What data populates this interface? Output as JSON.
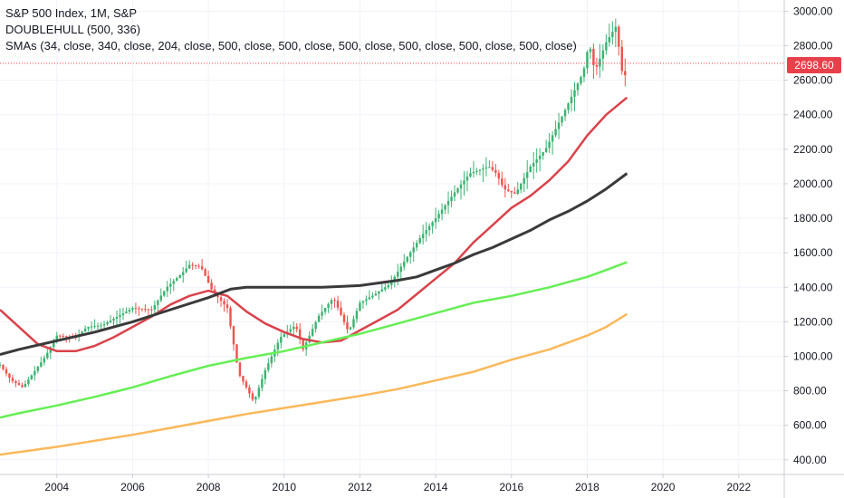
{
  "legend": {
    "title": "S&P 500 Index, 1M, S&P",
    "line2": "DOUBLEHULL (500, 336)",
    "line3": "SMAs (34, close, 340, close, 204, close, 500, close, 500, close, 500, close, 500, close, 500, close, 500, close)"
  },
  "last_price_label": "2698.60",
  "colors": {
    "up": "#3cb371",
    "down": "#ef5350",
    "last_price": "#e8404a",
    "sma_red": "#d9434b",
    "sma_black": "#3a3a3a",
    "sma_green": "#66ee55",
    "sma_orange": "#fbb85a",
    "grid": "#f0f3fa"
  },
  "chart_data": {
    "type": "line",
    "chart_style": "candlestick price with moving-average overlays",
    "x_axis": {
      "ticks": [
        "2004",
        "2006",
        "2008",
        "2010",
        "2012",
        "2014",
        "2016",
        "2018",
        "2020",
        "2022"
      ],
      "range": [
        2002.5,
        2023.2
      ]
    },
    "y_axis": {
      "ticks": [
        "400.00",
        "600.00",
        "800.00",
        "1000.00",
        "1200.00",
        "1400.00",
        "1600.00",
        "1800.00",
        "2000.00",
        "2200.00",
        "2400.00",
        "2600.00",
        "2800.00",
        "3000.00"
      ],
      "range": [
        315,
        3065
      ]
    },
    "last_price": 2698.6,
    "price_anchors": [
      [
        2002.5,
        950
      ],
      [
        2002.8,
        860
      ],
      [
        2003.1,
        820
      ],
      [
        2003.3,
        880
      ],
      [
        2003.7,
        1000
      ],
      [
        2004.0,
        1120
      ],
      [
        2004.5,
        1110
      ],
      [
        2004.8,
        1170
      ],
      [
        2005.2,
        1180
      ],
      [
        2005.6,
        1230
      ],
      [
        2006.0,
        1280
      ],
      [
        2006.5,
        1270
      ],
      [
        2006.9,
        1400
      ],
      [
        2007.3,
        1480
      ],
      [
        2007.5,
        1530
      ],
      [
        2007.8,
        1520
      ],
      [
        2008.1,
        1380
      ],
      [
        2008.5,
        1280
      ],
      [
        2008.8,
        900
      ],
      [
        2009.0,
        820
      ],
      [
        2009.2,
        735
      ],
      [
        2009.5,
        920
      ],
      [
        2009.9,
        1110
      ],
      [
        2010.3,
        1180
      ],
      [
        2010.5,
        1040
      ],
      [
        2010.9,
        1230
      ],
      [
        2011.3,
        1340
      ],
      [
        2011.7,
        1140
      ],
      [
        2012.0,
        1310
      ],
      [
        2012.4,
        1360
      ],
      [
        2012.8,
        1420
      ],
      [
        2013.2,
        1560
      ],
      [
        2013.6,
        1690
      ],
      [
        2014.0,
        1800
      ],
      [
        2014.5,
        1950
      ],
      [
        2014.9,
        2060
      ],
      [
        2015.4,
        2100
      ],
      [
        2015.6,
        2060
      ],
      [
        2015.8,
        1970
      ],
      [
        2016.1,
        1940
      ],
      [
        2016.5,
        2100
      ],
      [
        2016.9,
        2200
      ],
      [
        2017.4,
        2420
      ],
      [
        2017.9,
        2650
      ],
      [
        2018.05,
        2820
      ],
      [
        2018.2,
        2650
      ],
      [
        2018.5,
        2820
      ],
      [
        2018.75,
        2910
      ],
      [
        2018.9,
        2700
      ],
      [
        2018.95,
        2560
      ],
      [
        2019.05,
        2698.6
      ]
    ],
    "series": [
      {
        "color_key": "sma_red",
        "points": [
          [
            2002.5,
            1270
          ],
          [
            2003.0,
            1170
          ],
          [
            2003.5,
            1070
          ],
          [
            2004.0,
            1030
          ],
          [
            2004.5,
            1030
          ],
          [
            2005.0,
            1060
          ],
          [
            2005.5,
            1110
          ],
          [
            2006.0,
            1170
          ],
          [
            2006.5,
            1230
          ],
          [
            2007.0,
            1300
          ],
          [
            2007.5,
            1350
          ],
          [
            2008.0,
            1380
          ],
          [
            2008.5,
            1350
          ],
          [
            2009.0,
            1260
          ],
          [
            2009.5,
            1190
          ],
          [
            2010.0,
            1140
          ],
          [
            2010.5,
            1100
          ],
          [
            2011.0,
            1080
          ],
          [
            2011.5,
            1090
          ],
          [
            2012.0,
            1150
          ],
          [
            2012.5,
            1210
          ],
          [
            2013.0,
            1270
          ],
          [
            2013.5,
            1360
          ],
          [
            2014.0,
            1450
          ],
          [
            2014.5,
            1540
          ],
          [
            2015.0,
            1660
          ],
          [
            2015.5,
            1760
          ],
          [
            2016.0,
            1860
          ],
          [
            2016.5,
            1930
          ],
          [
            2017.0,
            2020
          ],
          [
            2017.5,
            2130
          ],
          [
            2018.0,
            2280
          ],
          [
            2018.5,
            2400
          ],
          [
            2019.05,
            2500
          ]
        ]
      },
      {
        "color_key": "sma_black",
        "points": [
          [
            2002.5,
            1010
          ],
          [
            2003.0,
            1040
          ],
          [
            2004.0,
            1090
          ],
          [
            2005.0,
            1140
          ],
          [
            2006.0,
            1200
          ],
          [
            2007.0,
            1270
          ],
          [
            2008.0,
            1340
          ],
          [
            2008.6,
            1390
          ],
          [
            2009.0,
            1400
          ],
          [
            2010.0,
            1400
          ],
          [
            2011.0,
            1400
          ],
          [
            2012.0,
            1410
          ],
          [
            2013.0,
            1440
          ],
          [
            2013.5,
            1460
          ],
          [
            2014.0,
            1500
          ],
          [
            2014.5,
            1540
          ],
          [
            2015.0,
            1590
          ],
          [
            2015.5,
            1630
          ],
          [
            2016.0,
            1680
          ],
          [
            2016.5,
            1730
          ],
          [
            2017.0,
            1790
          ],
          [
            2017.5,
            1840
          ],
          [
            2018.0,
            1900
          ],
          [
            2018.5,
            1970
          ],
          [
            2019.05,
            2060
          ]
        ]
      },
      {
        "color_key": "sma_green",
        "points": [
          [
            2002.5,
            645
          ],
          [
            2003.0,
            670
          ],
          [
            2004.0,
            715
          ],
          [
            2005.0,
            765
          ],
          [
            2006.0,
            820
          ],
          [
            2007.0,
            885
          ],
          [
            2008.0,
            945
          ],
          [
            2009.0,
            990
          ],
          [
            2010.0,
            1030
          ],
          [
            2011.0,
            1080
          ],
          [
            2012.0,
            1130
          ],
          [
            2013.0,
            1190
          ],
          [
            2014.0,
            1250
          ],
          [
            2015.0,
            1310
          ],
          [
            2016.0,
            1350
          ],
          [
            2017.0,
            1400
          ],
          [
            2018.0,
            1460
          ],
          [
            2018.5,
            1500
          ],
          [
            2019.05,
            1545
          ]
        ]
      },
      {
        "color_key": "sma_orange",
        "points": [
          [
            2002.5,
            430
          ],
          [
            2003.0,
            445
          ],
          [
            2004.0,
            475
          ],
          [
            2005.0,
            510
          ],
          [
            2006.0,
            545
          ],
          [
            2007.0,
            585
          ],
          [
            2008.0,
            625
          ],
          [
            2009.0,
            665
          ],
          [
            2010.0,
            700
          ],
          [
            2011.0,
            735
          ],
          [
            2012.0,
            770
          ],
          [
            2013.0,
            810
          ],
          [
            2014.0,
            860
          ],
          [
            2015.0,
            910
          ],
          [
            2016.0,
            980
          ],
          [
            2017.0,
            1040
          ],
          [
            2018.0,
            1120
          ],
          [
            2018.5,
            1170
          ],
          [
            2019.05,
            1245
          ]
        ]
      }
    ]
  }
}
